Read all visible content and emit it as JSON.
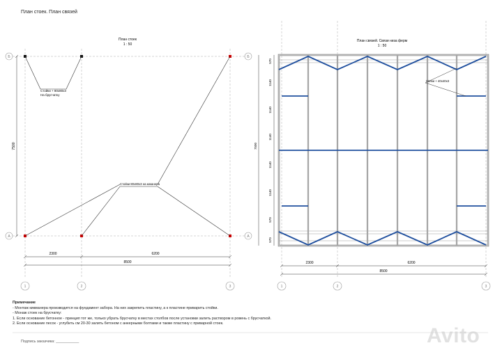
{
  "sheet_title": "План стоек. План связей",
  "left_plan": {
    "title": "План стоек",
    "scale": "1 : 50",
    "callout_posts": [
      "Стойки + 80х80х3",
      "На брусчатку"
    ],
    "callout_ground": "Стойки 80х80х3 на киканера",
    "dim_height": "7500",
    "dim_seg1": "2300",
    "dim_seg2": "6200",
    "dim_total": "8500",
    "axis_letters": [
      "Б",
      "А"
    ],
    "axis_numbers": [
      "1",
      "2",
      "3"
    ]
  },
  "right_plan": {
    "title": "План связей. Связи низа ферм",
    "scale": "1 : 50",
    "callout": "Связи + 40х40х3",
    "dim_height": "7500",
    "dims_left": [
      "570",
      "1140",
      "1140",
      "1140",
      "1140",
      "1140",
      "570"
    ],
    "dim_seg1": "2300",
    "dim_seg2": "6200",
    "dim_total": "8500",
    "axis_letters": [
      "Б",
      "А"
    ],
    "axis_numbers": [
      "1",
      "2",
      "3"
    ]
  },
  "notes": {
    "heading": "Примечание",
    "lines": [
      "- Монтаж кикманера производится на фундамент забора. На них закрепить пластину, а к пластине приварить стойки.",
      "- Монаж стоек на брусчатку:",
      "1. Если основание бетонное -  принцип тот же, только убрать брусчатку в местах столбов после установки залить раствором в ровень с брусчаткой.",
      "2. Если основание песок - углубить см 20-30 залить бетоном с анкерными болтами и также пластину с приварной стоек."
    ]
  },
  "signature": "Подпись заказчика: ___________",
  "watermark": "Avito",
  "colors": {
    "brace": "#1f4f9e",
    "post": "#cc0000",
    "line": "#333333",
    "frame": "#8a8a8a"
  }
}
